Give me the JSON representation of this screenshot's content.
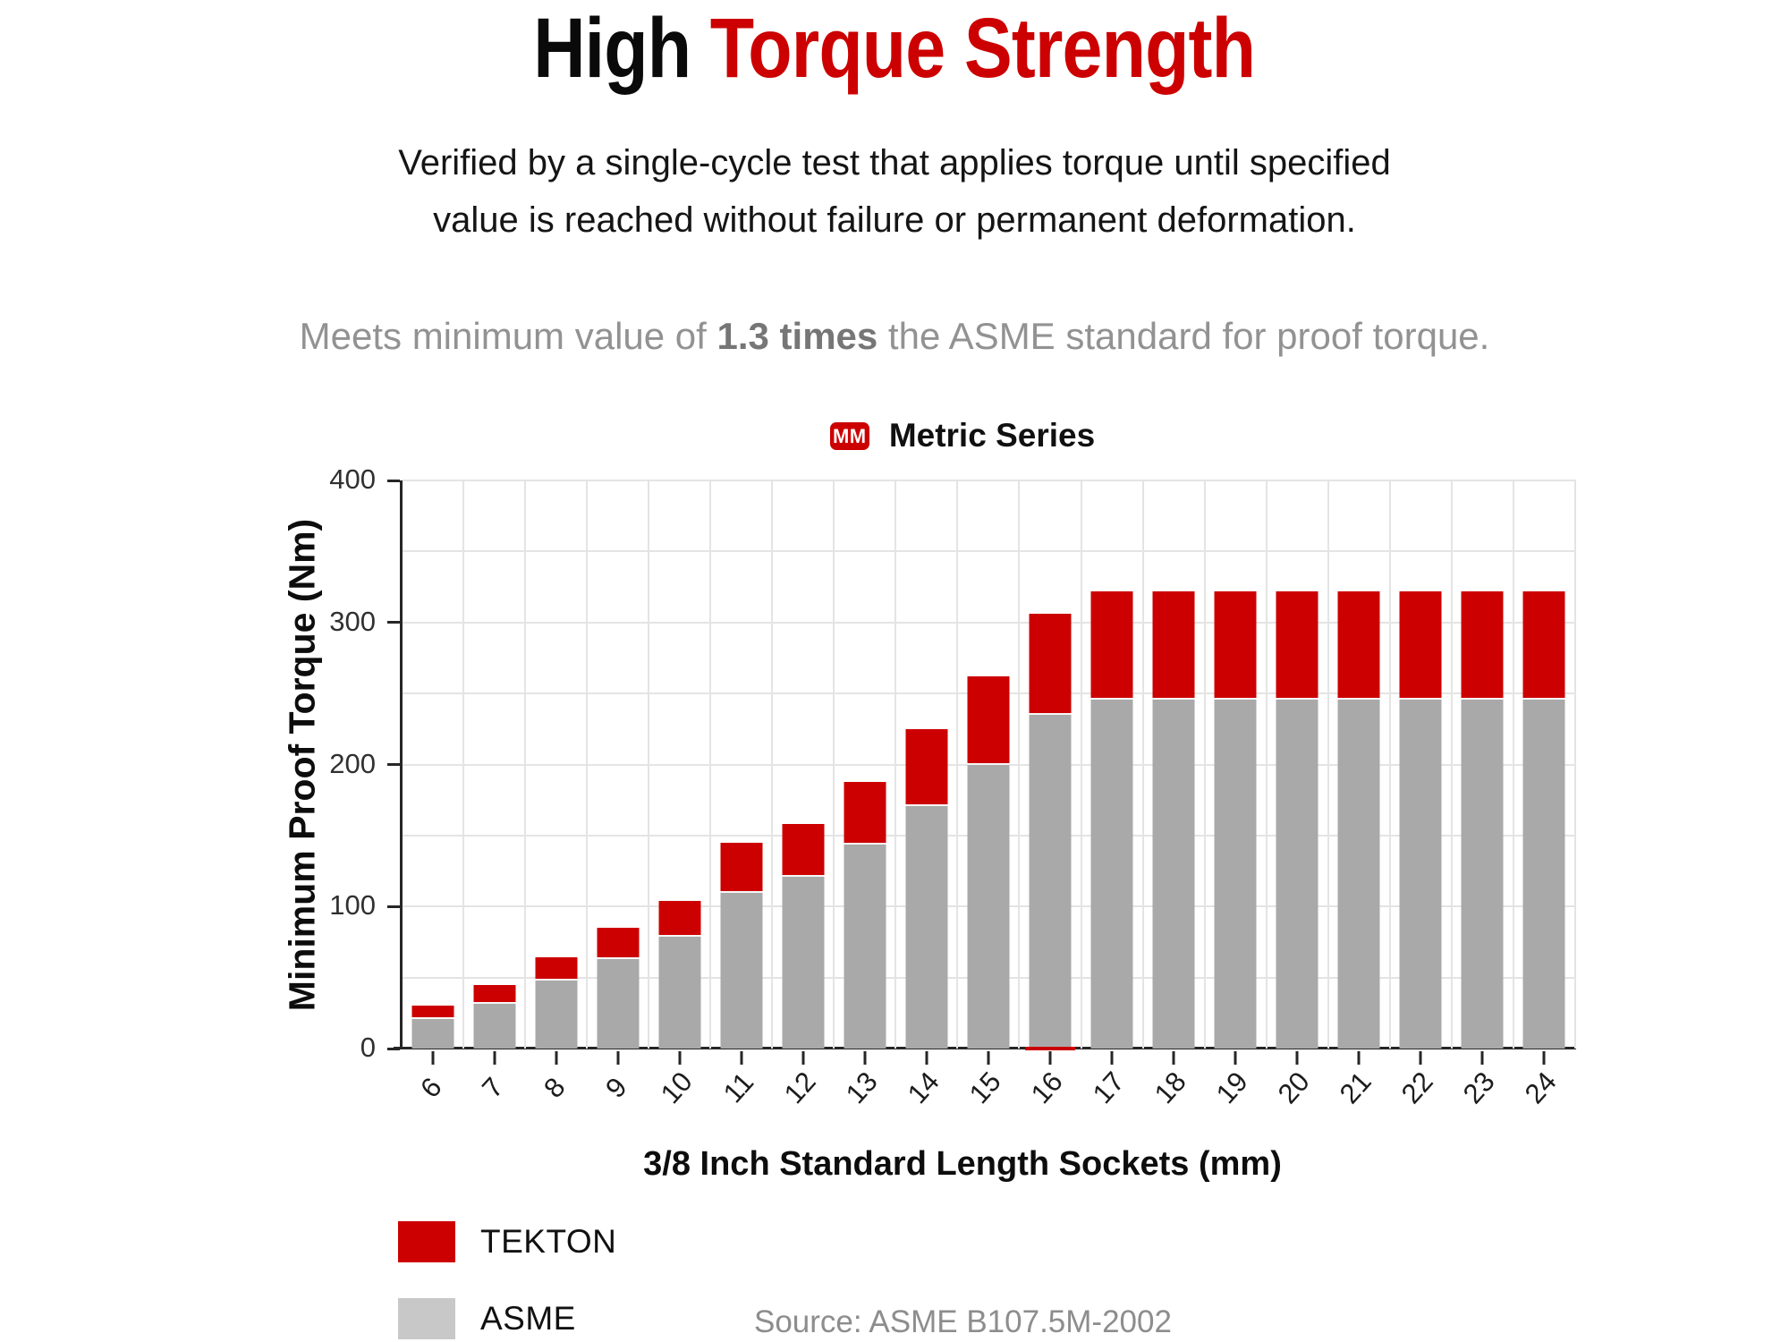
{
  "header": {
    "title_black": "High ",
    "title_red": "Torque Strength",
    "subtitle_line1": "Verified by a single-cycle test that applies torque until specified",
    "subtitle_line2": "value is reached without failure or permanent deformation.",
    "claim_prefix": "Meets minimum value of ",
    "claim_strong": "1.3 times",
    "claim_suffix": " the ASME standard for proof torque."
  },
  "chart_data": {
    "type": "bar",
    "stacked": true,
    "badge": "MM",
    "title": "Metric Series",
    "xlabel": "3/8 Inch Standard Length Sockets (mm)",
    "ylabel": "Minimum Proof Torque (Nm)",
    "ylim": [
      0,
      400
    ],
    "y_ticks": [
      0,
      100,
      200,
      300,
      400
    ],
    "gridline_step": 50,
    "grid": true,
    "legend_position": "bottom-left",
    "categories": [
      6,
      7,
      8,
      9,
      10,
      11,
      12,
      13,
      14,
      15,
      16,
      17,
      18,
      19,
      20,
      21,
      22,
      23,
      24
    ],
    "series": [
      {
        "name": "TEKTON",
        "color": "#cc0000",
        "swatch_color": "#cc0000",
        "values_are": "total bar height (Nm)",
        "values": [
          30,
          45,
          64,
          85,
          104,
          145,
          158,
          188,
          225,
          262,
          306,
          322,
          322,
          322,
          322,
          322,
          322,
          322,
          322
        ]
      },
      {
        "name": "ASME",
        "color": "#a9a9a9",
        "swatch_color": "#c8c8c8",
        "values_are": "gray lower segment height (Nm)",
        "values": [
          22,
          33,
          49,
          64,
          80,
          111,
          122,
          145,
          172,
          201,
          236,
          247,
          247,
          247,
          247,
          247,
          247,
          247,
          247
        ]
      }
    ],
    "source": "Source: ASME B107.5M-2002"
  }
}
